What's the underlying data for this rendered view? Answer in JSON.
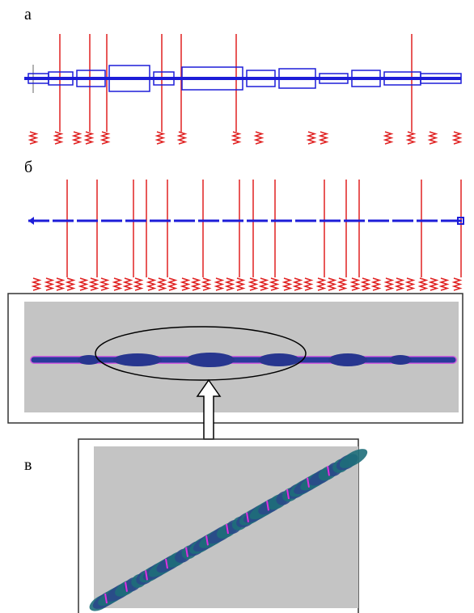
{
  "panels": [
    {
      "label": "а"
    },
    {
      "label": "б"
    },
    {
      "label": "в"
    }
  ]
}
